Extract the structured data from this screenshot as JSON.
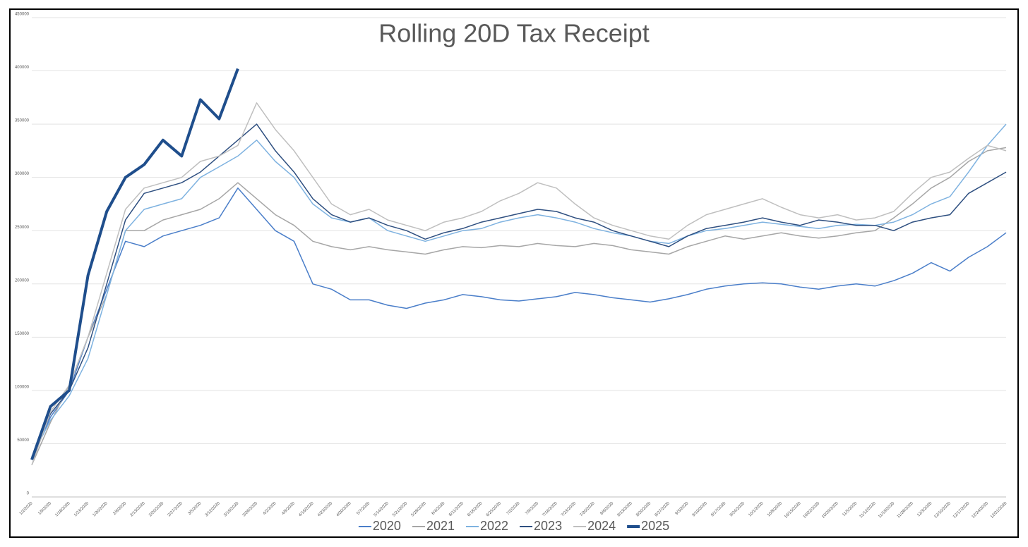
{
  "chart_data": {
    "type": "line",
    "title": "Rolling 20D Tax Receipt",
    "categories": [
      "1/2/2020",
      "1/9/2020",
      "1/16/2020",
      "1/23/2020",
      "1/30/2020",
      "2/6/2020",
      "2/13/2020",
      "2/20/2020",
      "2/27/2020",
      "3/5/2020",
      "3/12/2020",
      "3/19/2020",
      "3/26/2020",
      "4/2/2020",
      "4/9/2020",
      "4/16/2020",
      "4/23/2020",
      "4/30/2020",
      "5/7/2020",
      "5/14/2020",
      "5/21/2020",
      "5/28/2020",
      "6/4/2020",
      "6/11/2020",
      "6/18/2020",
      "6/25/2020",
      "7/2/2020",
      "7/9/2020",
      "7/16/2020",
      "7/23/2020",
      "7/30/2020",
      "8/6/2020",
      "8/13/2020",
      "8/20/2020",
      "8/27/2020",
      "9/3/2020",
      "9/10/2020",
      "9/17/2020",
      "9/24/2020",
      "10/1/2020",
      "10/8/2020",
      "10/15/2020",
      "10/22/2020",
      "10/29/2020",
      "11/5/2020",
      "11/12/2020",
      "11/19/2020",
      "11/26/2020",
      "12/3/2020",
      "12/10/2020",
      "12/17/2020",
      "12/24/2020",
      "12/31/2020"
    ],
    "series": [
      {
        "name": "2020",
        "color": "#4a7ec9",
        "line_width": 1.5,
        "values": [
          35000,
          75000,
          100000,
          150000,
          195000,
          240000,
          235000,
          245000,
          250000,
          255000,
          262000,
          290000,
          270000,
          250000,
          240000,
          200000,
          195000,
          185000,
          185000,
          180000,
          177000,
          182000,
          185000,
          190000,
          188000,
          185000,
          184000,
          186000,
          188000,
          192000,
          190000,
          187000,
          185000,
          183000,
          186000,
          190000,
          195000,
          198000,
          200000,
          201000,
          200000,
          197000,
          195000,
          198000,
          200000,
          198000,
          203000,
          210000,
          220000,
          212000,
          225000,
          235000,
          248000
        ]
      },
      {
        "name": "2021",
        "color": "#a6a6a6",
        "line_width": 1.5,
        "values": [
          30000,
          70000,
          105000,
          150000,
          190000,
          250000,
          250000,
          260000,
          265000,
          270000,
          280000,
          295000,
          280000,
          265000,
          255000,
          240000,
          235000,
          232000,
          235000,
          232000,
          230000,
          228000,
          232000,
          235000,
          234000,
          236000,
          235000,
          238000,
          236000,
          235000,
          238000,
          236000,
          232000,
          230000,
          228000,
          235000,
          240000,
          245000,
          242000,
          245000,
          248000,
          245000,
          243000,
          245000,
          248000,
          250000,
          262000,
          275000,
          290000,
          300000,
          315000,
          325000,
          328000
        ]
      },
      {
        "name": "2022",
        "color": "#7eb2e0",
        "line_width": 1.5,
        "values": [
          38000,
          72000,
          95000,
          130000,
          190000,
          250000,
          270000,
          275000,
          280000,
          300000,
          310000,
          320000,
          335000,
          315000,
          300000,
          275000,
          262000,
          258000,
          262000,
          250000,
          245000,
          240000,
          245000,
          250000,
          252000,
          258000,
          262000,
          265000,
          262000,
          258000,
          252000,
          248000,
          245000,
          240000,
          238000,
          245000,
          250000,
          252000,
          255000,
          258000,
          256000,
          254000,
          252000,
          255000,
          256000,
          255000,
          258000,
          265000,
          275000,
          282000,
          305000,
          330000,
          350000
        ]
      },
      {
        "name": "2023",
        "color": "#2e4f80",
        "line_width": 1.5,
        "values": [
          36000,
          78000,
          100000,
          140000,
          200000,
          260000,
          285000,
          290000,
          295000,
          305000,
          320000,
          335000,
          350000,
          325000,
          305000,
          280000,
          265000,
          258000,
          262000,
          255000,
          250000,
          242000,
          248000,
          252000,
          258000,
          262000,
          266000,
          270000,
          268000,
          262000,
          258000,
          250000,
          245000,
          240000,
          235000,
          245000,
          252000,
          255000,
          258000,
          262000,
          258000,
          255000,
          260000,
          258000,
          255000,
          255000,
          250000,
          258000,
          262000,
          265000,
          285000,
          295000,
          305000
        ]
      },
      {
        "name": "2024",
        "color": "#bfbfbf",
        "line_width": 1.5,
        "values": [
          30000,
          80000,
          105000,
          150000,
          210000,
          270000,
          290000,
          295000,
          300000,
          315000,
          320000,
          330000,
          370000,
          345000,
          325000,
          300000,
          275000,
          265000,
          270000,
          260000,
          255000,
          250000,
          258000,
          262000,
          268000,
          278000,
          285000,
          295000,
          290000,
          275000,
          262000,
          255000,
          250000,
          245000,
          242000,
          255000,
          265000,
          270000,
          275000,
          280000,
          272000,
          265000,
          262000,
          265000,
          260000,
          262000,
          268000,
          285000,
          300000,
          305000,
          318000,
          330000,
          325000
        ]
      },
      {
        "name": "2025",
        "color": "#1f4e8c",
        "line_width": 4,
        "values": [
          35000,
          85000,
          100000,
          208000,
          268000,
          300000,
          312000,
          335000,
          320000,
          373000,
          355000,
          402000,
          null,
          null,
          null,
          null,
          null,
          null,
          null,
          null,
          null,
          null,
          null,
          null,
          null,
          null,
          null,
          null,
          null,
          null,
          null,
          null,
          null,
          null,
          null,
          null,
          null,
          null,
          null,
          null,
          null,
          null,
          null,
          null,
          null,
          null,
          null,
          null,
          null,
          null,
          null,
          null,
          null
        ]
      }
    ],
    "ylim": [
      0,
      450000
    ],
    "yticks": [
      0,
      50000,
      100000,
      150000,
      200000,
      250000,
      300000,
      350000,
      400000,
      450000
    ],
    "grid": true,
    "legend": "bottom"
  }
}
